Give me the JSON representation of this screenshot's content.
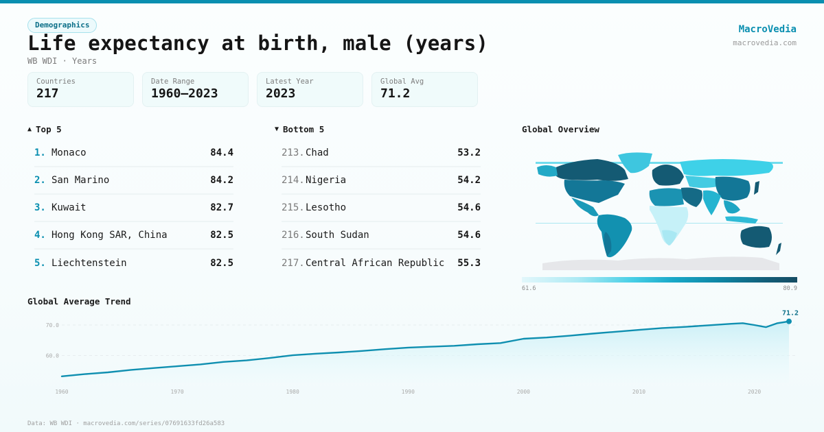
{
  "header": {
    "category_tag": "Demographics",
    "title": "Life expectancy at birth, male (years)",
    "subtitle": "WB WDI · Years"
  },
  "brand": {
    "name": "MacroVedia",
    "url": "macrovedia.com"
  },
  "stats": [
    {
      "label": "Countries",
      "value": "217"
    },
    {
      "label": "Date Range",
      "value": "1960–2023"
    },
    {
      "label": "Latest Year",
      "value": "2023"
    },
    {
      "label": "Global Avg",
      "value": "71.2"
    }
  ],
  "top5": {
    "heading": "Top 5",
    "arrow": "▲",
    "items": [
      {
        "rank": "1.",
        "name": "Monaco",
        "value": "84.4"
      },
      {
        "rank": "2.",
        "name": "San Marino",
        "value": "84.2"
      },
      {
        "rank": "3.",
        "name": "Kuwait",
        "value": "82.7"
      },
      {
        "rank": "4.",
        "name": "Hong Kong SAR, China",
        "value": "82.5"
      },
      {
        "rank": "5.",
        "name": "Liechtenstein",
        "value": "82.5"
      }
    ]
  },
  "bottom5": {
    "heading": "Bottom 5",
    "arrow": "▼",
    "items": [
      {
        "rank": "213.",
        "name": "Chad",
        "value": "53.2"
      },
      {
        "rank": "214.",
        "name": "Nigeria",
        "value": "54.2"
      },
      {
        "rank": "215.",
        "name": "Lesotho",
        "value": "54.6"
      },
      {
        "rank": "216.",
        "name": "South Sudan",
        "value": "54.6"
      },
      {
        "rank": "217.",
        "name": "Central African Republic",
        "value": "55.3"
      }
    ]
  },
  "map": {
    "title": "Global Overview",
    "legend_min": "61.6",
    "legend_max": "80.9"
  },
  "trend": {
    "title": "Global Average Trend",
    "latest_label": "71.2"
  },
  "footer": {
    "text": "Data: WB WDI · macrovedia.com/series/07691633fd26a583"
  },
  "colors": {
    "accent": "#0a8fb0",
    "line": "#0f8fb0",
    "area_top": "#c9eff6",
    "scale_low": "#e2f7fb",
    "scale_high": "#154c63",
    "no_data": "#e6e7ea"
  },
  "chart_data": [
    {
      "type": "line",
      "title": "Global Average Trend",
      "xlabel": "",
      "ylabel": "",
      "x": [
        1960,
        1962,
        1964,
        1966,
        1968,
        1970,
        1972,
        1974,
        1976,
        1978,
        1980,
        1982,
        1984,
        1986,
        1988,
        1990,
        1992,
        1994,
        1996,
        1998,
        2000,
        2002,
        2004,
        2006,
        2008,
        2010,
        2012,
        2014,
        2016,
        2018,
        2019,
        2020,
        2021,
        2022,
        2023
      ],
      "series": [
        {
          "name": "Global Avg (male life expectancy, years)",
          "values": [
            53.2,
            53.9,
            54.5,
            55.3,
            55.9,
            56.5,
            57.1,
            57.9,
            58.4,
            59.2,
            60.1,
            60.6,
            61.0,
            61.5,
            62.1,
            62.6,
            62.9,
            63.2,
            63.7,
            64.1,
            65.5,
            65.9,
            66.5,
            67.2,
            67.8,
            68.4,
            69.0,
            69.4,
            69.9,
            70.4,
            70.6,
            70.0,
            69.3,
            70.6,
            71.2
          ]
        }
      ],
      "yticks": [
        60.0,
        70.0
      ],
      "xticks": [
        1960,
        1970,
        1980,
        1990,
        2000,
        2010,
        2020
      ],
      "ylim": [
        50.5,
        72.5
      ],
      "xlim": [
        1960,
        2023
      ],
      "grid": "horizontal dashed",
      "annotations": [
        {
          "x": 2023,
          "y": 71.2,
          "text": "71.2"
        }
      ]
    },
    {
      "type": "heatmap",
      "title": "Global Overview",
      "description": "World choropleth map of male life expectancy by country",
      "colorbar_range": [
        61.6,
        80.9
      ],
      "colorbar_labels": [
        "61.6",
        "80.9"
      ]
    }
  ]
}
